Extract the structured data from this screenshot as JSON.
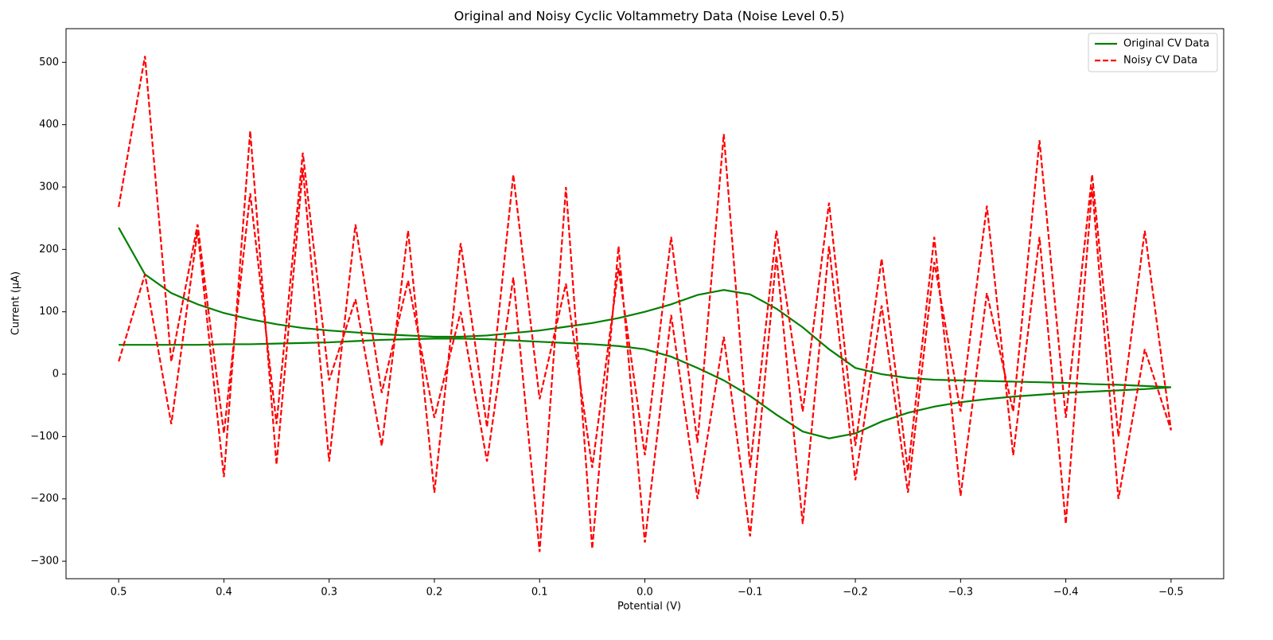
{
  "chart_data": {
    "type": "line",
    "title": "Original and Noisy Cyclic Voltammetry Data (Noise Level 0.5)",
    "x_label": "Potential (V)",
    "y_label": "Current (µA)",
    "x": [
      0.5,
      0.475,
      0.45,
      0.425,
      0.4,
      0.375,
      0.35,
      0.325,
      0.3,
      0.275,
      0.25,
      0.225,
      0.2,
      0.175,
      0.15,
      0.125,
      0.1,
      0.075,
      0.05,
      0.025,
      0,
      -0.025,
      -0.05,
      -0.075,
      -0.1,
      -0.125,
      -0.15,
      -0.175,
      -0.2,
      -0.225,
      -0.25,
      -0.275,
      -0.3,
      -0.325,
      -0.35,
      -0.375,
      -0.4,
      -0.425,
      -0.45,
      -0.475,
      -0.5,
      -0.475,
      -0.45,
      -0.425,
      -0.4,
      -0.375,
      -0.35,
      -0.325,
      -0.3,
      -0.275,
      -0.25,
      -0.225,
      -0.2,
      -0.175,
      -0.15,
      -0.125,
      -0.1,
      -0.075,
      -0.05,
      -0.025,
      0,
      0.025,
      0.05,
      0.075,
      0.1,
      0.125,
      0.15,
      0.175,
      0.2,
      0.225,
      0.25,
      0.275,
      0.3,
      0.325,
      0.35,
      0.375,
      0.4,
      0.425,
      0.45,
      0.475,
      0.5
    ],
    "series": [
      {
        "name": "Original CV Data",
        "color": "#008000",
        "dash": "solid",
        "values": [
          235,
          160,
          130,
          112,
          98,
          88,
          80,
          74,
          70,
          67,
          64,
          62,
          60,
          60,
          62,
          66,
          70,
          76,
          82,
          90,
          100,
          112,
          127,
          135,
          128,
          105,
          75,
          40,
          10,
          0,
          -6,
          -9,
          -10,
          -11,
          -12,
          -13,
          -14,
          -16,
          -17,
          -19,
          -21,
          -24,
          -26,
          -28,
          -30,
          -33,
          -36,
          -40,
          -45,
          -52,
          -62,
          -76,
          -95,
          -103,
          -92,
          -65,
          -35,
          -10,
          10,
          28,
          40,
          45,
          48,
          50,
          52,
          54,
          56,
          57,
          57,
          56,
          55,
          53,
          51,
          50,
          49,
          48,
          48,
          47,
          47,
          47,
          47
        ]
      },
      {
        "name": "Noisy CV Data",
        "color": "#ff0000",
        "dash": "dashed",
        "values": [
          268,
          510,
          20,
          240,
          -95,
          290,
          -80,
          355,
          -10,
          120,
          -115,
          230,
          -190,
          210,
          -85,
          320,
          -40,
          145,
          -150,
          170,
          -130,
          220,
          -110,
          385,
          -150,
          230,
          -60,
          275,
          -115,
          185,
          -155,
          220,
          -195,
          130,
          -60,
          375,
          -70,
          320,
          -100,
          230,
          -90,
          40,
          -200,
          300,
          -240,
          220,
          -130,
          270,
          -60,
          180,
          -190,
          110,
          -170,
          205,
          -240,
          190,
          -260,
          60,
          -200,
          95,
          -270,
          205,
          -280,
          300,
          -285,
          155,
          -140,
          100,
          -70,
          150,
          -30,
          240,
          -140,
          330,
          -145,
          390,
          -165,
          230,
          -80,
          160,
          20
        ]
      }
    ],
    "xlim": [
      0.55,
      -0.55
    ],
    "xticks": [
      0.5,
      0.4,
      0.3,
      0.2,
      0.1,
      {
        "value": 0,
        "label": "0.0"
      },
      {
        "value": -0.1,
        "label": "−0.1"
      },
      {
        "value": -0.2,
        "label": "−0.2"
      },
      {
        "value": -0.3,
        "label": "−0.3"
      },
      {
        "value": -0.4,
        "label": "−0.4"
      },
      {
        "value": -0.5,
        "label": "−0.5"
      }
    ],
    "ylim": [
      -328,
      554
    ],
    "yticks": [
      {
        "value": -300,
        "label": "−300"
      },
      {
        "value": -200,
        "label": "−200"
      },
      {
        "value": -100,
        "label": "−100"
      },
      0,
      100,
      200,
      300,
      400,
      500
    ],
    "legend": "upper right",
    "grid": false
  }
}
